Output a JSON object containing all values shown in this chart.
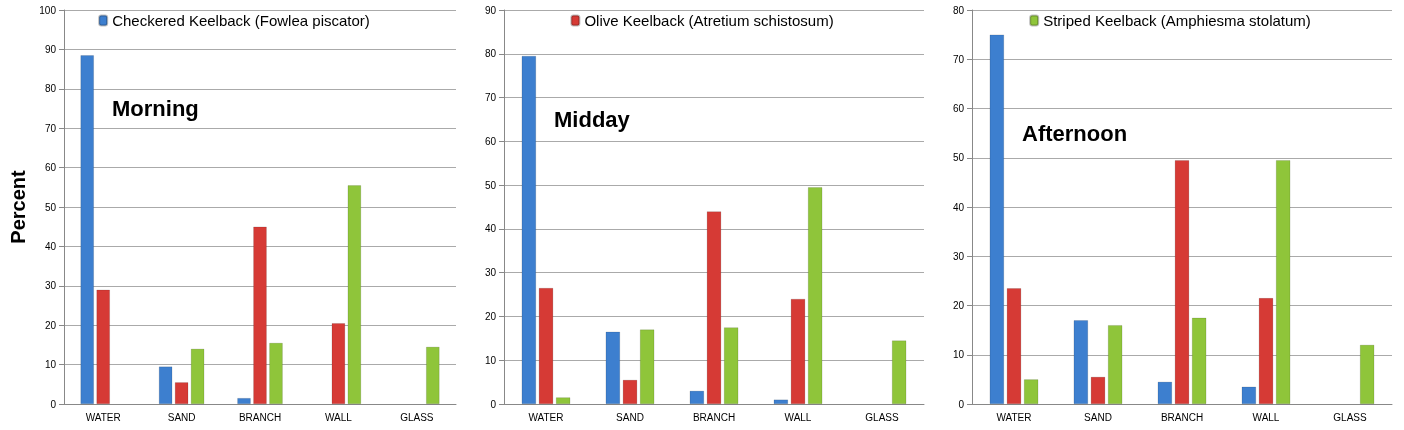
{
  "chart_data": [
    {
      "type": "bar",
      "ylabel": "Percent",
      "categories": [
        "WATER",
        "SAND",
        "BRANCH",
        "WALL",
        "GLASS"
      ],
      "ylim": [
        0,
        100
      ],
      "yticks": [
        0,
        10,
        20,
        30,
        40,
        50,
        60,
        70,
        80,
        90,
        100
      ],
      "grid": "y",
      "legend": "top",
      "annotations": [
        "Morning"
      ],
      "series": [
        {
          "name": "Checkered Keelback (Fowlea piscator)",
          "color": "#3d7fcf",
          "values": [
            88.5,
            9.5,
            1.5,
            null,
            null
          ]
        },
        {
          "color": "#d63a35",
          "values": [
            29,
            5.5,
            45,
            20.5,
            null
          ]
        },
        {
          "color": "#8fc53a",
          "values": [
            null,
            14,
            15.5,
            55.5,
            14.5
          ]
        }
      ]
    },
    {
      "type": "bar",
      "categories": [
        "WATER",
        "SAND",
        "BRANCH",
        "WALL",
        "GLASS"
      ],
      "ylim": [
        0,
        90
      ],
      "yticks": [
        0,
        10,
        20,
        30,
        40,
        50,
        60,
        70,
        80,
        90
      ],
      "grid": "y",
      "legend": "top",
      "annotations": [
        "Midday"
      ],
      "series": [
        {
          "color": "#3d7fcf",
          "values": [
            79.5,
            16.5,
            3,
            1,
            null
          ]
        },
        {
          "name": "Olive Keelback (Atretium schistosum)",
          "color": "#d63a35",
          "values": [
            26.5,
            5.5,
            44,
            24,
            null
          ]
        },
        {
          "color": "#8fc53a",
          "values": [
            1.5,
            17,
            17.5,
            49.5,
            14.5
          ]
        }
      ]
    },
    {
      "type": "bar",
      "categories": [
        "WATER",
        "SAND",
        "BRANCH",
        "WALL",
        "GLASS"
      ],
      "ylim": [
        0,
        80
      ],
      "yticks": [
        0,
        10,
        20,
        30,
        40,
        50,
        60,
        70,
        80
      ],
      "grid": "y",
      "legend": "top",
      "annotations": [
        "Afternoon"
      ],
      "series": [
        {
          "color": "#3d7fcf",
          "values": [
            75,
            17,
            4.5,
            3.5,
            null
          ]
        },
        {
          "color": "#d63a35",
          "values": [
            23.5,
            5.5,
            49.5,
            21.5,
            null
          ]
        },
        {
          "name": "Striped Keelback (Amphiesma stolatum)",
          "color": "#8fc53a",
          "values": [
            5,
            16,
            17.5,
            49.5,
            12
          ]
        }
      ]
    }
  ]
}
